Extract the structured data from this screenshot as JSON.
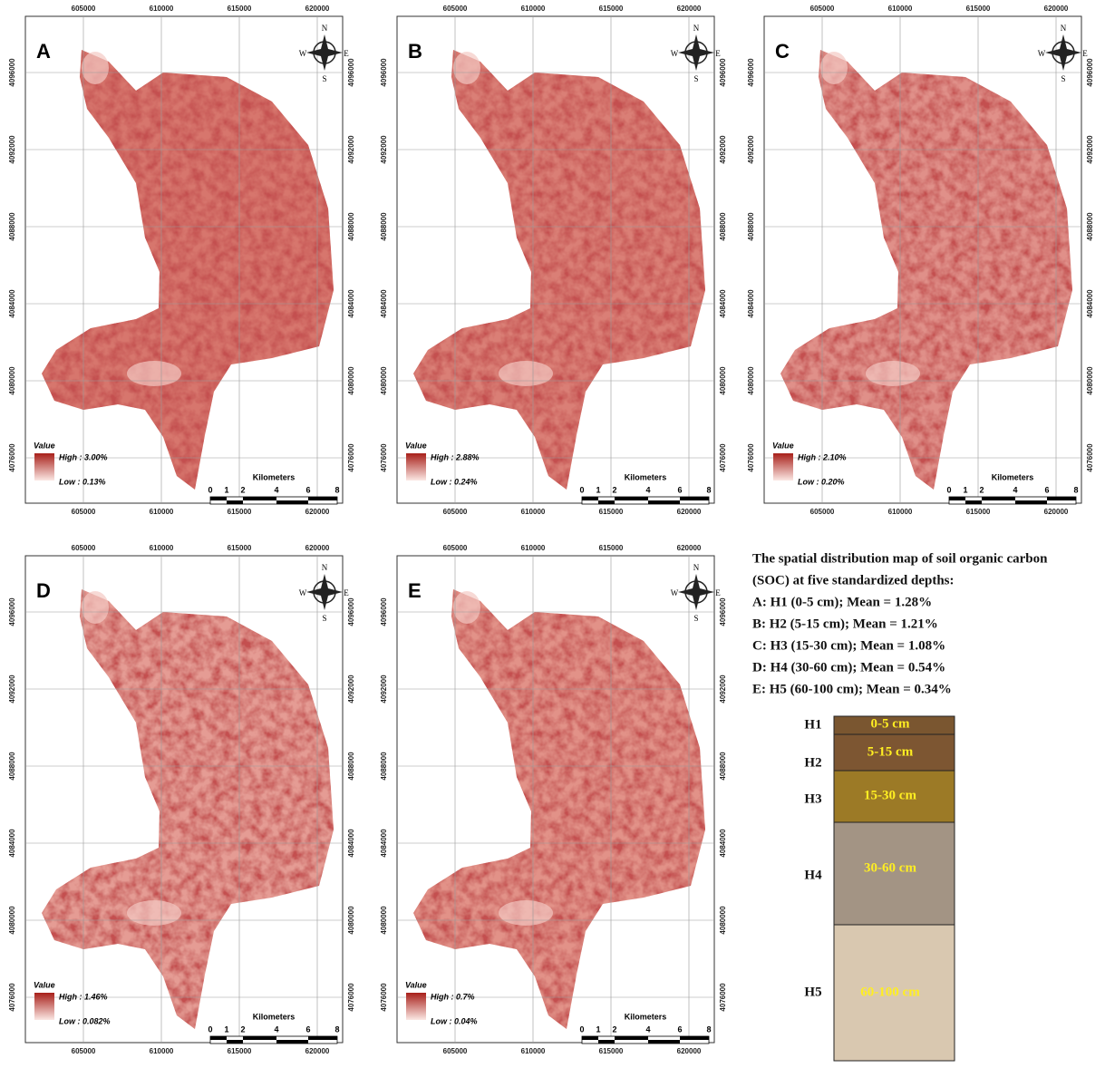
{
  "panels": [
    {
      "letter": "A",
      "high": "High : 3.00%",
      "low": "Low : 0.13%"
    },
    {
      "letter": "B",
      "high": "High : 2.88%",
      "low": "Low : 0.24%"
    },
    {
      "letter": "C",
      "high": "High : 2.10%",
      "low": "Low : 0.20%"
    },
    {
      "letter": "D",
      "high": "High : 1.46%",
      "low": "Low : 0.082%"
    },
    {
      "letter": "E",
      "high": "High : 0.7%",
      "low": "Low : 0.04%"
    }
  ],
  "x_ticks": [
    "605000",
    "610000",
    "615000",
    "620000"
  ],
  "y_ticks": [
    "4076000",
    "4080000",
    "4084000",
    "4088000",
    "4092000",
    "4096000"
  ],
  "legend_title": "Value",
  "scale_title": "Kilometers",
  "scale_labels": [
    "0",
    "1",
    "2",
    "4",
    "6",
    "8"
  ],
  "compass": [
    "N",
    "E",
    "S",
    "W"
  ],
  "caption": [
    "The spatial distribution  map of soil organic  carbon",
    "(SOC) at five standardized  depths:",
    "A: H1 (0-5 cm);  Mean = 1.28%",
    "B: H2 (5-15 cm);  Mean = 1.21%",
    "C: H3 (15-30 cm);  Mean = 1.08%",
    "D: H4 (30-60 cm);  Mean = 0.54%",
    "E: H5 (60-100 cm);  Mean = 0.34%"
  ],
  "profile": [
    {
      "horizon": "H1",
      "depth": "0-5 cm"
    },
    {
      "horizon": "H2",
      "depth": "5-15 cm"
    },
    {
      "horizon": "H3",
      "depth": "15-30 cm"
    },
    {
      "horizon": "H4",
      "depth": "30-60 cm"
    },
    {
      "horizon": "H5",
      "depth": "60-100 cm"
    }
  ]
}
